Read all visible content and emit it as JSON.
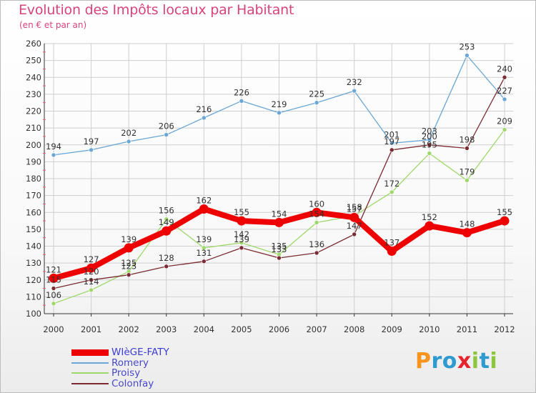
{
  "header": {
    "title": "Evolution des Impôts locaux par Habitant",
    "subtitle": "(en € et par an)"
  },
  "logo": {
    "text": "Proxiti",
    "colors": [
      "#f7941d",
      "#2e9ad0",
      "#8cc63f",
      "#e7232b"
    ]
  },
  "chart_data": {
    "type": "line",
    "title": "Evolution des Impôts locaux par Habitant",
    "subtitle": "(en € et par an)",
    "xlabel": "",
    "ylabel": "",
    "ylim": [
      100,
      260
    ],
    "yticks": [
      100,
      110,
      120,
      130,
      140,
      150,
      160,
      170,
      180,
      190,
      200,
      210,
      220,
      230,
      240,
      250,
      260
    ],
    "grid": true,
    "legend_position": "bottom-left",
    "categories": [
      "2000",
      "2001",
      "2002",
      "2003",
      "2004",
      "2005",
      "2006",
      "2007",
      "2008",
      "2009",
      "2010",
      "2011",
      "2012"
    ],
    "series": [
      {
        "name": "Romery",
        "color": "#6aa6d6",
        "values": [
          194,
          197,
          202,
          206,
          216,
          226,
          219,
          225,
          232,
          201,
          203,
          253,
          227
        ]
      },
      {
        "name": "Proisy",
        "color": "#9ed86a",
        "values": [
          106,
          114,
          125,
          156,
          139,
          142,
          135,
          154,
          158,
          172,
          195,
          179,
          209
        ]
      },
      {
        "name": "Colonfay",
        "color": "#7a2b33",
        "values": [
          115,
          120,
          123,
          128,
          131,
          139,
          133,
          136,
          147,
          197,
          200,
          198,
          240
        ]
      },
      {
        "name": "WIèGE-FATY",
        "color": "#ee0000",
        "values": [
          121,
          127,
          139,
          149,
          162,
          155,
          154,
          160,
          157,
          137,
          152,
          148,
          155
        ]
      }
    ],
    "legend": [
      {
        "name": "WIèGE-FATY",
        "color": "#ee0000"
      },
      {
        "name": "Romery",
        "color": "#6aa6d6"
      },
      {
        "name": "Proisy",
        "color": "#9ed86a"
      },
      {
        "name": "Colonfay",
        "color": "#7a2b33"
      }
    ]
  }
}
